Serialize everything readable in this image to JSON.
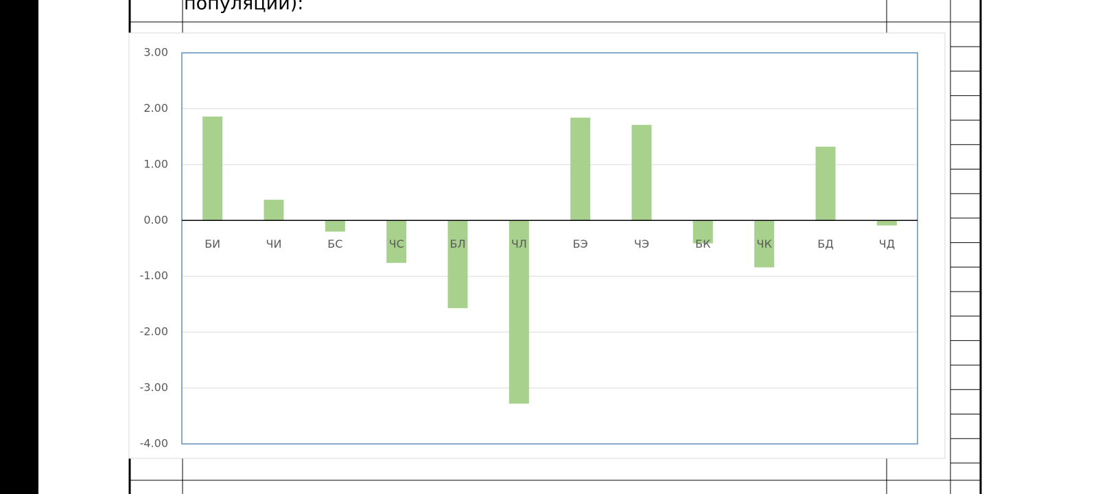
{
  "header_text": "популяции):",
  "chart_data": {
    "type": "bar",
    "categories": [
      "БИ",
      "ЧИ",
      "БС",
      "ЧС",
      "БЛ",
      "ЧЛ",
      "БЭ",
      "ЧЭ",
      "БК",
      "ЧК",
      "БД",
      "ЧД"
    ],
    "values": [
      1.86,
      0.37,
      -0.2,
      -0.76,
      -1.57,
      -3.28,
      1.84,
      1.71,
      -0.41,
      -0.84,
      1.32,
      -0.09
    ],
    "color": "#a9d18e",
    "ylim": [
      -4,
      3
    ],
    "yticks": [
      {
        "value": 3,
        "label": "3.00"
      },
      {
        "value": 2,
        "label": "2.00"
      },
      {
        "value": 1,
        "label": "1.00"
      },
      {
        "value": 0,
        "label": "0.00"
      },
      {
        "value": -1,
        "label": "-1.00"
      },
      {
        "value": -2,
        "label": "-2.00"
      },
      {
        "value": -3,
        "label": "-3.00"
      },
      {
        "value": -4,
        "label": "-4.00"
      }
    ],
    "grid": true
  }
}
